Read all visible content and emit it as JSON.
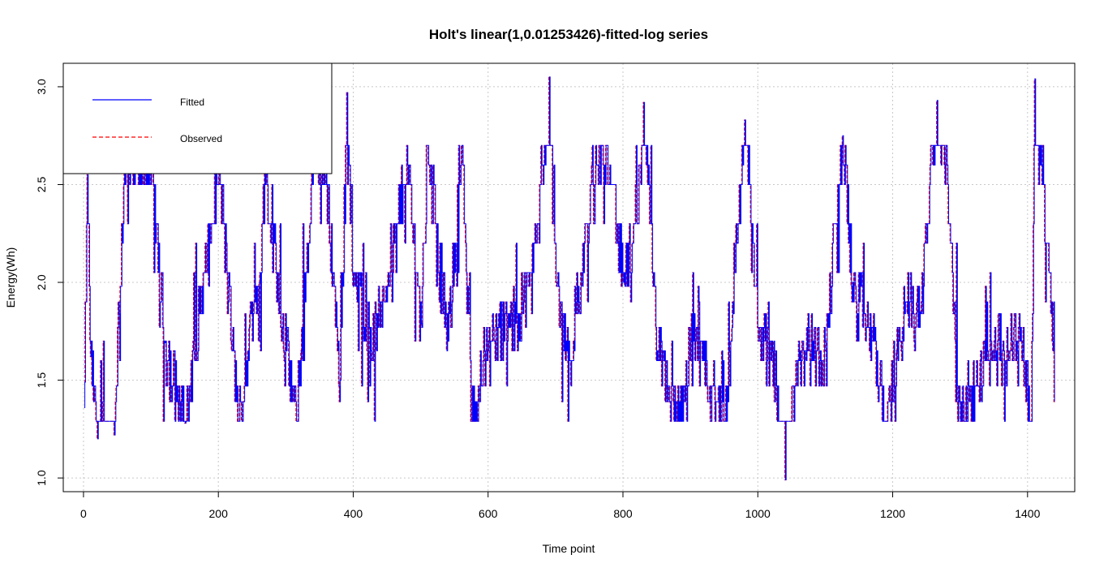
{
  "chart_data": {
    "type": "line",
    "title": "Holt's linear(1,0.01253426)-fitted-log series",
    "xlabel": "Time point",
    "ylabel": "Energy(Wh)",
    "xlim": [
      -30,
      1470
    ],
    "ylim": [
      0.93,
      3.12
    ],
    "x_ticks": [
      0,
      200,
      400,
      600,
      800,
      1000,
      1200,
      1400
    ],
    "y_ticks": [
      1.0,
      1.5,
      2.0,
      2.5,
      3.0
    ],
    "x_tick_labels": [
      "0",
      "200",
      "400",
      "600",
      "800",
      "1000",
      "1200",
      "1400"
    ],
    "y_tick_labels": [
      "1.0",
      "1.5",
      "2.0",
      "2.5",
      "3.0"
    ],
    "grid": true,
    "legend_position": "top-left",
    "n_points": 1440,
    "series": [
      {
        "name": "Fitted",
        "color": "#0000ff",
        "style": "solid"
      },
      {
        "name": "Observed",
        "color": "#ff0000",
        "style": "dashed"
      }
    ],
    "key_points": [
      [
        1,
        1.49
      ],
      [
        5,
        2.55
      ],
      [
        10,
        1.62
      ],
      [
        20,
        1.2
      ],
      [
        45,
        1.22
      ],
      [
        60,
        2.6
      ],
      [
        80,
        2.6
      ],
      [
        100,
        2.6
      ],
      [
        120,
        1.69
      ],
      [
        150,
        1.28
      ],
      [
        200,
        2.6
      ],
      [
        220,
        1.65
      ],
      [
        230,
        1.29
      ],
      [
        260,
        2.0
      ],
      [
        270,
        2.55
      ],
      [
        300,
        1.65
      ],
      [
        315,
        1.29
      ],
      [
        340,
        2.6
      ],
      [
        360,
        2.5
      ],
      [
        380,
        1.5
      ],
      [
        390,
        2.97
      ],
      [
        400,
        2.05
      ],
      [
        430,
        1.69
      ],
      [
        480,
        2.6
      ],
      [
        500,
        1.79
      ],
      [
        510,
        2.7
      ],
      [
        540,
        1.7
      ],
      [
        560,
        2.7
      ],
      [
        575,
        1.29
      ],
      [
        600,
        1.7
      ],
      [
        640,
        1.79
      ],
      [
        660,
        1.98
      ],
      [
        680,
        2.6
      ],
      [
        690,
        3.05
      ],
      [
        700,
        2.0
      ],
      [
        720,
        1.6
      ],
      [
        760,
        2.6
      ],
      [
        780,
        2.6
      ],
      [
        800,
        2.0
      ],
      [
        820,
        2.3
      ],
      [
        830,
        2.92
      ],
      [
        850,
        1.65
      ],
      [
        880,
        1.29
      ],
      [
        900,
        1.7
      ],
      [
        950,
        1.29
      ],
      [
        980,
        2.83
      ],
      [
        1000,
        1.7
      ],
      [
        1020,
        1.7
      ],
      [
        1040,
        0.99
      ],
      [
        1060,
        1.7
      ],
      [
        1100,
        1.65
      ],
      [
        1125,
        2.75
      ],
      [
        1140,
        2.0
      ],
      [
        1170,
        1.7
      ],
      [
        1190,
        1.29
      ],
      [
        1220,
        1.9
      ],
      [
        1240,
        1.85
      ],
      [
        1265,
        2.93
      ],
      [
        1280,
        2.6
      ],
      [
        1300,
        1.29
      ],
      [
        1350,
        1.7
      ],
      [
        1390,
        1.7
      ],
      [
        1405,
        1.29
      ],
      [
        1410,
        3.04
      ],
      [
        1420,
        2.6
      ],
      [
        1440,
        1.7
      ]
    ]
  }
}
